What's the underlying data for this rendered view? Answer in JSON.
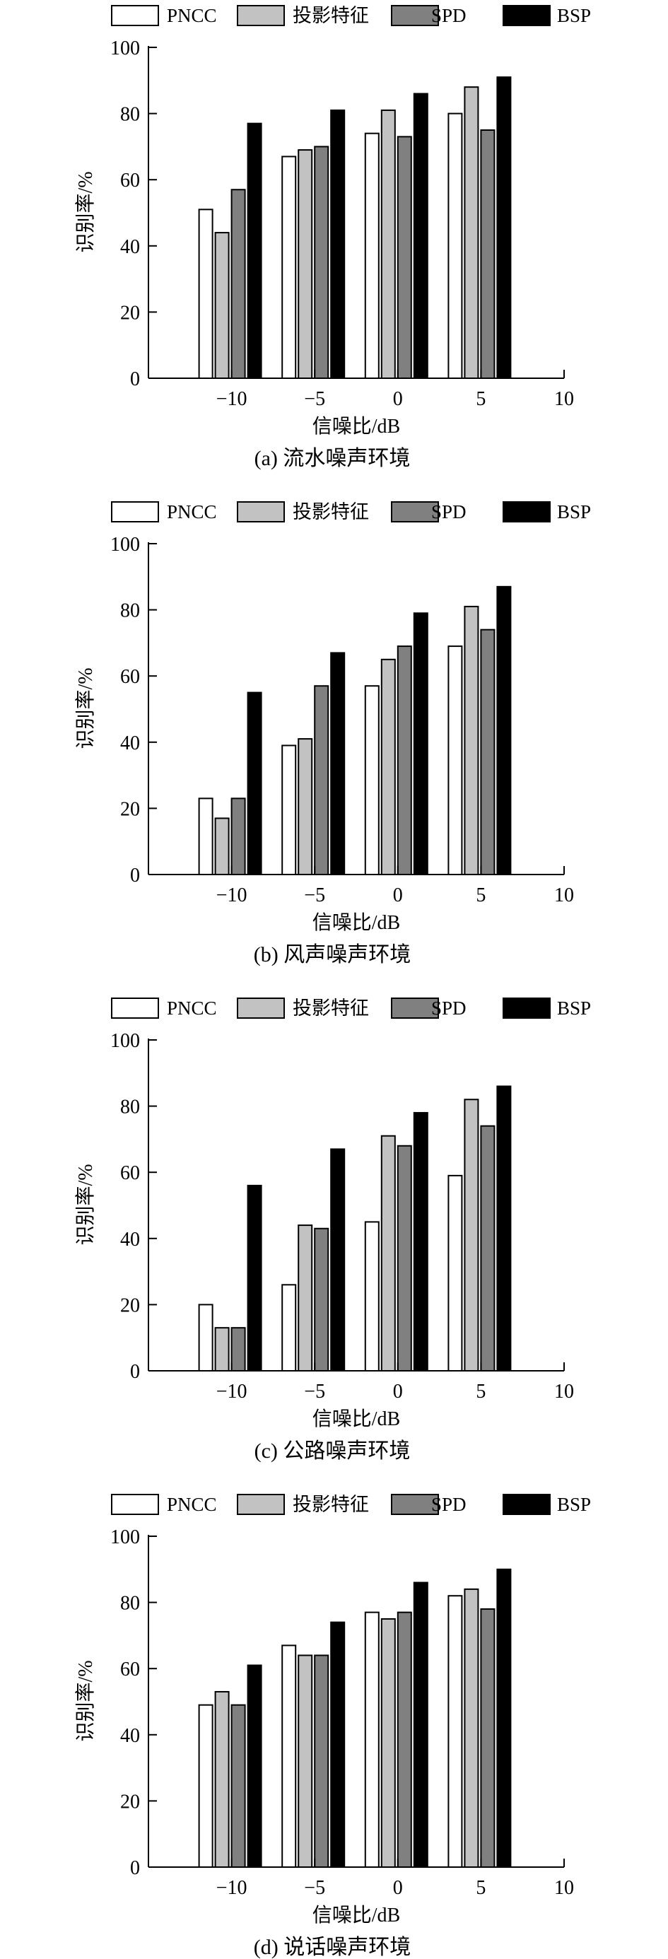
{
  "colors": {
    "series": [
      "#ffffff",
      "#c2c2c2",
      "#808080",
      "#000000"
    ],
    "stroke": "#000000",
    "text": "#000000"
  },
  "chart_data": [
    {
      "type": "bar",
      "caption": "(a) 流水噪声环境",
      "xlabel": "信噪比/dB",
      "ylabel": "识别率/%",
      "categories": [
        "-10",
        "-5",
        "0",
        "5"
      ],
      "xlim": [
        -15,
        10
      ],
      "x_ticks": [
        "−10",
        "−5",
        "0",
        "5",
        "10"
      ],
      "ylim": [
        0,
        100
      ],
      "y_ticks": [
        "0",
        "20",
        "40",
        "60",
        "80",
        "100"
      ],
      "legend": "top",
      "series": [
        {
          "name": "PNCC",
          "values": [
            51,
            67,
            74,
            80
          ]
        },
        {
          "name": "投影特征",
          "values": [
            44,
            69,
            81,
            88
          ]
        },
        {
          "name": "SPD",
          "values": [
            57,
            70,
            73,
            75
          ]
        },
        {
          "name": "BSP",
          "values": [
            77,
            81,
            86,
            91
          ]
        }
      ]
    },
    {
      "type": "bar",
      "caption": "(b) 风声噪声环境",
      "xlabel": "信噪比/dB",
      "ylabel": "识别率/%",
      "categories": [
        "-10",
        "-5",
        "0",
        "5"
      ],
      "xlim": [
        -15,
        10
      ],
      "x_ticks": [
        "−10",
        "−5",
        "0",
        "5",
        "10"
      ],
      "ylim": [
        0,
        100
      ],
      "y_ticks": [
        "0",
        "20",
        "40",
        "60",
        "80",
        "100"
      ],
      "legend": "top",
      "series": [
        {
          "name": "PNCC",
          "values": [
            23,
            39,
            57,
            69
          ]
        },
        {
          "name": "投影特征",
          "values": [
            17,
            41,
            65,
            81
          ]
        },
        {
          "name": "SPD",
          "values": [
            23,
            57,
            69,
            74
          ]
        },
        {
          "name": "BSP",
          "values": [
            55,
            67,
            79,
            87
          ]
        }
      ]
    },
    {
      "type": "bar",
      "caption": "(c) 公路噪声环境",
      "xlabel": "信噪比/dB",
      "ylabel": "识别率/%",
      "categories": [
        "-10",
        "-5",
        "0",
        "5"
      ],
      "xlim": [
        -15,
        10
      ],
      "x_ticks": [
        "−10",
        "−5",
        "0",
        "5",
        "10"
      ],
      "ylim": [
        0,
        100
      ],
      "y_ticks": [
        "0",
        "20",
        "40",
        "60",
        "80",
        "100"
      ],
      "legend": "top",
      "series": [
        {
          "name": "PNCC",
          "values": [
            20,
            26,
            45,
            59
          ]
        },
        {
          "name": "投影特征",
          "values": [
            13,
            44,
            71,
            82
          ]
        },
        {
          "name": "SPD",
          "values": [
            13,
            43,
            68,
            74
          ]
        },
        {
          "name": "BSP",
          "values": [
            56,
            67,
            78,
            86
          ]
        }
      ]
    },
    {
      "type": "bar",
      "caption": "(d) 说话噪声环境",
      "xlabel": "信噪比/dB",
      "ylabel": "识别率/%",
      "categories": [
        "-10",
        "-5",
        "0",
        "5"
      ],
      "xlim": [
        -15,
        10
      ],
      "x_ticks": [
        "−10",
        "−5",
        "0",
        "5",
        "10"
      ],
      "ylim": [
        0,
        100
      ],
      "y_ticks": [
        "0",
        "20",
        "40",
        "60",
        "80",
        "100"
      ],
      "legend": "top",
      "series": [
        {
          "name": "PNCC",
          "values": [
            49,
            67,
            77,
            82
          ]
        },
        {
          "name": "投影特征",
          "values": [
            53,
            64,
            75,
            84
          ]
        },
        {
          "name": "SPD",
          "values": [
            49,
            64,
            77,
            78
          ]
        },
        {
          "name": "BSP",
          "values": [
            61,
            74,
            86,
            90
          ]
        }
      ]
    }
  ]
}
